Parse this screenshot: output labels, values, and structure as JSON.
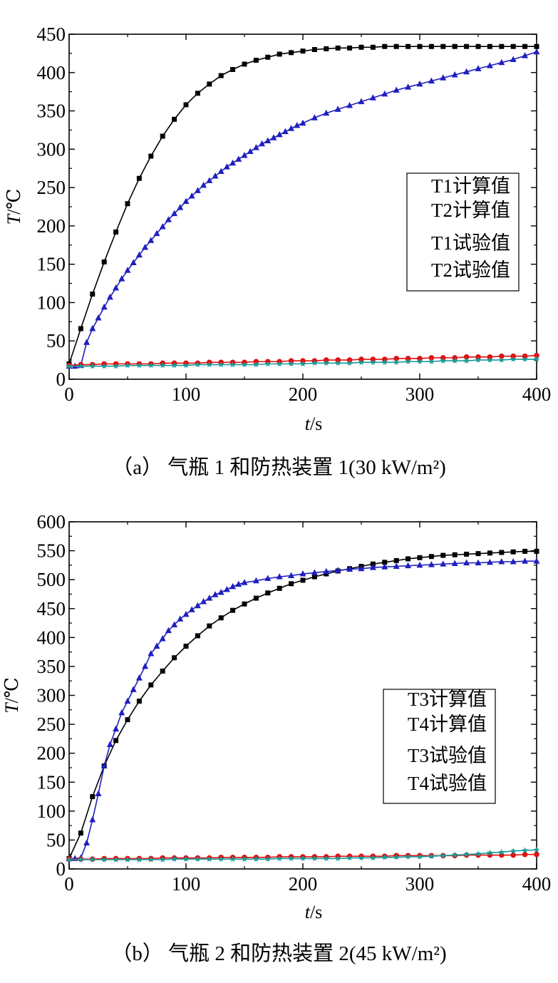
{
  "chart_data": [
    {
      "type": "line",
      "caption": "（a） 气瓶 1 和防热装置 1(30 kW/m²)",
      "xlabel_italic": "t",
      "xlabel_unit": "/s",
      "ylabel_italic": "T",
      "ylabel_unit": "/℃",
      "xlim": [
        0,
        400
      ],
      "ylim": [
        0,
        450
      ],
      "xticks": [
        0,
        100,
        200,
        300,
        400
      ],
      "yticks": [
        0,
        50,
        100,
        150,
        200,
        250,
        300,
        350,
        400,
        450
      ],
      "grid": false,
      "legend_position": "right",
      "series": [
        {
          "name": "T1计算值",
          "color": "#000000",
          "marker": "square",
          "x": [
            0,
            10,
            20,
            30,
            40,
            50,
            60,
            70,
            80,
            90,
            100,
            110,
            120,
            130,
            140,
            150,
            160,
            170,
            180,
            190,
            200,
            210,
            220,
            230,
            240,
            250,
            260,
            270,
            280,
            290,
            300,
            310,
            320,
            330,
            340,
            350,
            360,
            370,
            380,
            390,
            400
          ],
          "y": [
            20,
            66,
            111,
            153,
            192,
            229,
            262,
            291,
            317,
            339,
            358,
            373,
            385,
            396,
            404,
            411,
            416,
            420,
            424,
            426,
            428,
            430,
            431,
            432,
            432,
            433,
            433,
            434,
            434,
            434,
            434,
            434,
            434,
            434,
            434,
            434,
            434,
            434,
            434,
            434,
            434
          ]
        },
        {
          "name": "T2计算值",
          "color": "#1f1fbf",
          "marker": "triangle",
          "x": [
            0,
            5,
            10,
            15,
            20,
            25,
            30,
            35,
            40,
            45,
            50,
            55,
            60,
            65,
            70,
            75,
            80,
            85,
            90,
            95,
            100,
            105,
            110,
            115,
            120,
            125,
            130,
            135,
            140,
            145,
            150,
            155,
            160,
            165,
            170,
            175,
            180,
            185,
            190,
            195,
            200,
            210,
            220,
            230,
            240,
            250,
            260,
            270,
            280,
            290,
            300,
            310,
            320,
            330,
            340,
            350,
            360,
            370,
            380,
            390,
            400
          ],
          "y": [
            17,
            17,
            18,
            48,
            66,
            80,
            94,
            107,
            119,
            131,
            142,
            152,
            162,
            172,
            181,
            190,
            199,
            208,
            216,
            224,
            232,
            239,
            246,
            253,
            259,
            265,
            271,
            277,
            282,
            287,
            292,
            297,
            302,
            307,
            311,
            315,
            319,
            323,
            327,
            331,
            334,
            341,
            347,
            352,
            357,
            362,
            367,
            372,
            377,
            381,
            385,
            389,
            393,
            397,
            401,
            405,
            409,
            413,
            417,
            422,
            427
          ]
        },
        {
          "name": "T1试验值",
          "color": "#e01010",
          "marker": "circle",
          "x": [
            0,
            10,
            20,
            30,
            40,
            50,
            60,
            70,
            80,
            90,
            100,
            110,
            120,
            130,
            140,
            150,
            160,
            170,
            180,
            190,
            200,
            210,
            220,
            230,
            240,
            250,
            260,
            270,
            280,
            290,
            300,
            310,
            320,
            330,
            340,
            350,
            360,
            370,
            380,
            390,
            400
          ],
          "y": [
            18,
            19,
            19,
            20,
            20,
            20,
            20,
            20,
            21,
            21,
            21,
            21,
            22,
            22,
            22,
            22,
            23,
            23,
            23,
            24,
            24,
            24,
            25,
            25,
            25,
            26,
            26,
            26,
            27,
            27,
            27,
            28,
            28,
            28,
            29,
            29,
            29,
            30,
            30,
            30,
            31
          ]
        },
        {
          "name": "T2试验值",
          "color": "#1a9a9a",
          "marker": "star",
          "x": [
            0,
            10,
            20,
            30,
            40,
            50,
            60,
            70,
            80,
            90,
            100,
            110,
            120,
            130,
            140,
            150,
            160,
            170,
            180,
            190,
            200,
            210,
            220,
            230,
            240,
            250,
            260,
            270,
            280,
            290,
            300,
            310,
            320,
            330,
            340,
            350,
            360,
            370,
            380,
            390,
            400
          ],
          "y": [
            17,
            17,
            17,
            17,
            17,
            18,
            18,
            18,
            18,
            18,
            18,
            19,
            19,
            19,
            19,
            19,
            19,
            20,
            20,
            20,
            20,
            21,
            21,
            21,
            21,
            22,
            22,
            22,
            22,
            23,
            23,
            23,
            24,
            24,
            24,
            25,
            25,
            25,
            26,
            26,
            26
          ]
        }
      ]
    },
    {
      "type": "line",
      "caption": "（b） 气瓶 2 和防热装置 2(45 kW/m²)",
      "xlabel_italic": "t",
      "xlabel_unit": "/s",
      "ylabel_italic": "T",
      "ylabel_unit": "/℃",
      "xlim": [
        0,
        400
      ],
      "ylim": [
        0,
        600
      ],
      "xticks": [
        0,
        100,
        200,
        300,
        400
      ],
      "yticks": [
        0,
        50,
        100,
        150,
        200,
        250,
        300,
        350,
        400,
        450,
        500,
        550,
        600
      ],
      "grid": false,
      "legend_position": "right",
      "series": [
        {
          "name": "T3计算值",
          "color": "#000000",
          "marker": "square",
          "x": [
            0,
            10,
            20,
            30,
            40,
            50,
            60,
            70,
            80,
            90,
            100,
            110,
            120,
            130,
            140,
            150,
            160,
            170,
            180,
            190,
            200,
            210,
            220,
            230,
            240,
            250,
            260,
            270,
            280,
            290,
            300,
            310,
            320,
            330,
            340,
            350,
            360,
            370,
            380,
            390,
            400
          ],
          "y": [
            18,
            62,
            125,
            178,
            222,
            258,
            290,
            318,
            342,
            365,
            385,
            403,
            420,
            434,
            447,
            458,
            468,
            477,
            485,
            493,
            499,
            505,
            510,
            515,
            519,
            523,
            527,
            530,
            533,
            536,
            538,
            540,
            542,
            543,
            544,
            545,
            546,
            547,
            548,
            549,
            549
          ]
        },
        {
          "name": "T4计算值",
          "color": "#1f1fbf",
          "marker": "triangle",
          "x": [
            0,
            5,
            10,
            15,
            20,
            25,
            30,
            35,
            40,
            45,
            50,
            55,
            60,
            65,
            70,
            75,
            80,
            85,
            90,
            95,
            100,
            105,
            110,
            115,
            120,
            125,
            130,
            135,
            140,
            145,
            150,
            160,
            170,
            180,
            190,
            200,
            210,
            220,
            230,
            240,
            250,
            260,
            270,
            280,
            290,
            300,
            310,
            320,
            330,
            340,
            350,
            360,
            370,
            380,
            390,
            400
          ],
          "y": [
            18,
            18,
            19,
            45,
            85,
            130,
            178,
            215,
            242,
            270,
            290,
            310,
            330,
            350,
            372,
            385,
            398,
            412,
            422,
            432,
            440,
            448,
            455,
            462,
            468,
            474,
            478,
            483,
            488,
            492,
            495,
            498,
            502,
            505,
            507,
            510,
            512,
            514,
            516,
            518,
            519,
            521,
            522,
            523,
            524,
            525,
            526,
            527,
            528,
            529,
            529,
            530,
            531,
            531,
            532,
            532
          ]
        },
        {
          "name": "T3试验值",
          "color": "#e01010",
          "marker": "circle",
          "x": [
            0,
            10,
            20,
            30,
            40,
            50,
            60,
            70,
            80,
            90,
            100,
            110,
            120,
            130,
            140,
            150,
            160,
            170,
            180,
            190,
            200,
            210,
            220,
            230,
            240,
            250,
            260,
            270,
            280,
            290,
            300,
            310,
            320,
            330,
            340,
            350,
            360,
            370,
            380,
            390,
            400
          ],
          "y": [
            17,
            17,
            17,
            18,
            18,
            18,
            18,
            18,
            19,
            19,
            19,
            19,
            19,
            20,
            20,
            20,
            20,
            20,
            21,
            21,
            21,
            21,
            21,
            22,
            22,
            22,
            22,
            22,
            23,
            23,
            23,
            23,
            23,
            23,
            24,
            24,
            24,
            24,
            24,
            25,
            25
          ]
        },
        {
          "name": "T4试验值",
          "color": "#1a9a9a",
          "marker": "star",
          "x": [
            0,
            10,
            20,
            30,
            40,
            50,
            60,
            70,
            80,
            90,
            100,
            110,
            120,
            130,
            140,
            150,
            160,
            170,
            180,
            190,
            200,
            210,
            220,
            230,
            240,
            250,
            260,
            270,
            280,
            290,
            300,
            310,
            320,
            330,
            340,
            350,
            360,
            370,
            380,
            390,
            400
          ],
          "y": [
            16,
            16,
            16,
            16,
            16,
            16,
            16,
            16,
            16,
            17,
            17,
            17,
            17,
            17,
            17,
            17,
            17,
            17,
            18,
            18,
            18,
            18,
            18,
            18,
            19,
            19,
            19,
            20,
            20,
            21,
            21,
            22,
            23,
            24,
            25,
            26,
            28,
            29,
            31,
            32,
            33
          ]
        }
      ]
    }
  ]
}
